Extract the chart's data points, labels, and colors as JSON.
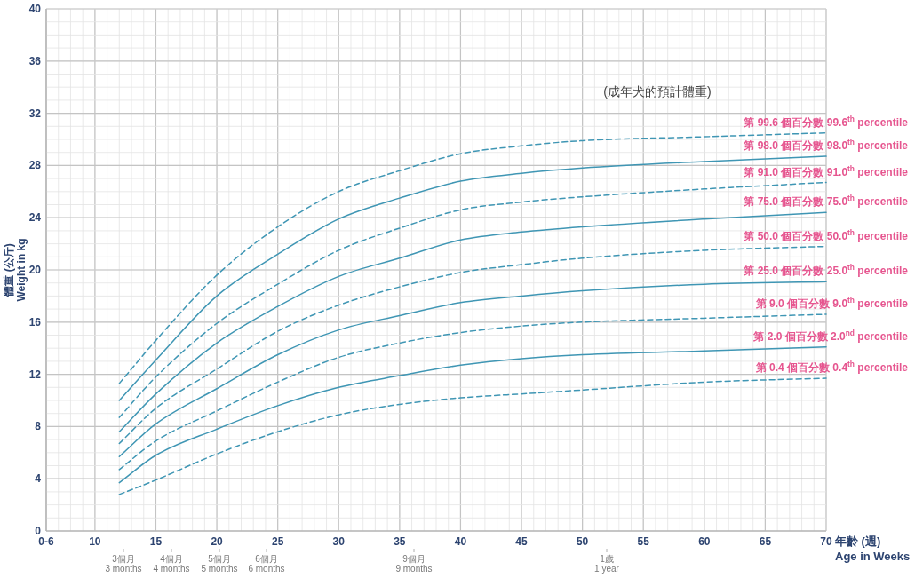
{
  "chart_data": {
    "type": "line",
    "xlabel": "年齡 (週)\nAge in Weeks",
    "ylabel": "體重 (公斤)\nWeight in kg",
    "annotations": [
      "(成年犬的預計體重)",
      "3個月\n3 months",
      "4個月\n4 months",
      "5個月\n5 months",
      "6個月\n6 months",
      "9個月\n9 months",
      "1歲\n1 year"
    ],
    "xlim": [
      6,
      70
    ],
    "xticks": [
      {
        "value": 6,
        "label": "0-6"
      },
      10,
      15,
      20,
      25,
      30,
      35,
      40,
      45,
      50,
      55,
      60,
      65,
      70
    ],
    "ylim": [
      0,
      40
    ],
    "yticks": [
      0,
      4,
      8,
      12,
      16,
      20,
      24,
      28,
      32,
      36,
      40
    ],
    "grid": true,
    "x": [
      12,
      15,
      20,
      25,
      30,
      35,
      40,
      45,
      50,
      60,
      70
    ],
    "series": [
      {
        "name": "第 99.6 個百分數  99.6$^{th}$ percentile",
        "color": "#3f96b4",
        "line_style": "dashed",
        "values": [
          11.3,
          14.6,
          19.6,
          23.3,
          26.0,
          27.6,
          28.9,
          29.5,
          29.9,
          30.2,
          30.5
        ]
      },
      {
        "name": "第 98.0 個百分數  98.0$^{th}$ percentile",
        "color": "#3f96b4",
        "line_style": "solid",
        "values": [
          10.0,
          13.1,
          18.0,
          21.2,
          23.9,
          25.5,
          26.8,
          27.4,
          27.8,
          28.3,
          28.7
        ]
      },
      {
        "name": "第 91.0 個百分數  91.0$^{th}$ percentile",
        "color": "#3f96b4",
        "line_style": "dashed",
        "values": [
          8.7,
          11.8,
          15.9,
          18.9,
          21.5,
          23.2,
          24.6,
          25.2,
          25.6,
          26.2,
          26.7
        ]
      },
      {
        "name": "第 75.0 個百分數  75.0$^{th}$ percentile",
        "color": "#3f96b4",
        "line_style": "solid",
        "values": [
          7.6,
          10.5,
          14.4,
          17.2,
          19.5,
          20.9,
          22.3,
          22.9,
          23.3,
          23.9,
          24.4
        ]
      },
      {
        "name": "第 50.0 個百分數  50.0$^{th}$ percentile",
        "color": "#3f96b4",
        "line_style": "dashed",
        "values": [
          6.7,
          9.4,
          12.4,
          15.3,
          17.3,
          18.7,
          19.8,
          20.4,
          20.9,
          21.5,
          21.8
        ]
      },
      {
        "name": "第 25.0 個百分數  25.0$^{th}$ percentile",
        "color": "#3f96b4",
        "line_style": "solid",
        "values": [
          5.7,
          8.2,
          10.9,
          13.5,
          15.4,
          16.5,
          17.5,
          18.0,
          18.4,
          18.9,
          19.1
        ]
      },
      {
        "name": "第 9.0 個百分數  9.0$^{th}$ percentile",
        "color": "#3f96b4",
        "line_style": "dashed",
        "values": [
          4.7,
          6.9,
          9.2,
          11.4,
          13.3,
          14.4,
          15.2,
          15.7,
          16.0,
          16.3,
          16.6
        ]
      },
      {
        "name": "第 2.0 個百分數  2.0$^{nd}$ percentile",
        "color": "#3f96b4",
        "line_style": "solid",
        "values": [
          3.7,
          5.8,
          7.8,
          9.6,
          11.0,
          11.9,
          12.7,
          13.2,
          13.5,
          13.8,
          14.1
        ]
      },
      {
        "name": "第 0.4 個百分數  0.4$^{th}$ percentile",
        "color": "#3f96b4",
        "line_style": "dashed",
        "values": [
          2.8,
          3.9,
          5.9,
          7.6,
          8.9,
          9.7,
          10.2,
          10.5,
          10.8,
          11.4,
          11.7
        ]
      }
    ]
  }
}
